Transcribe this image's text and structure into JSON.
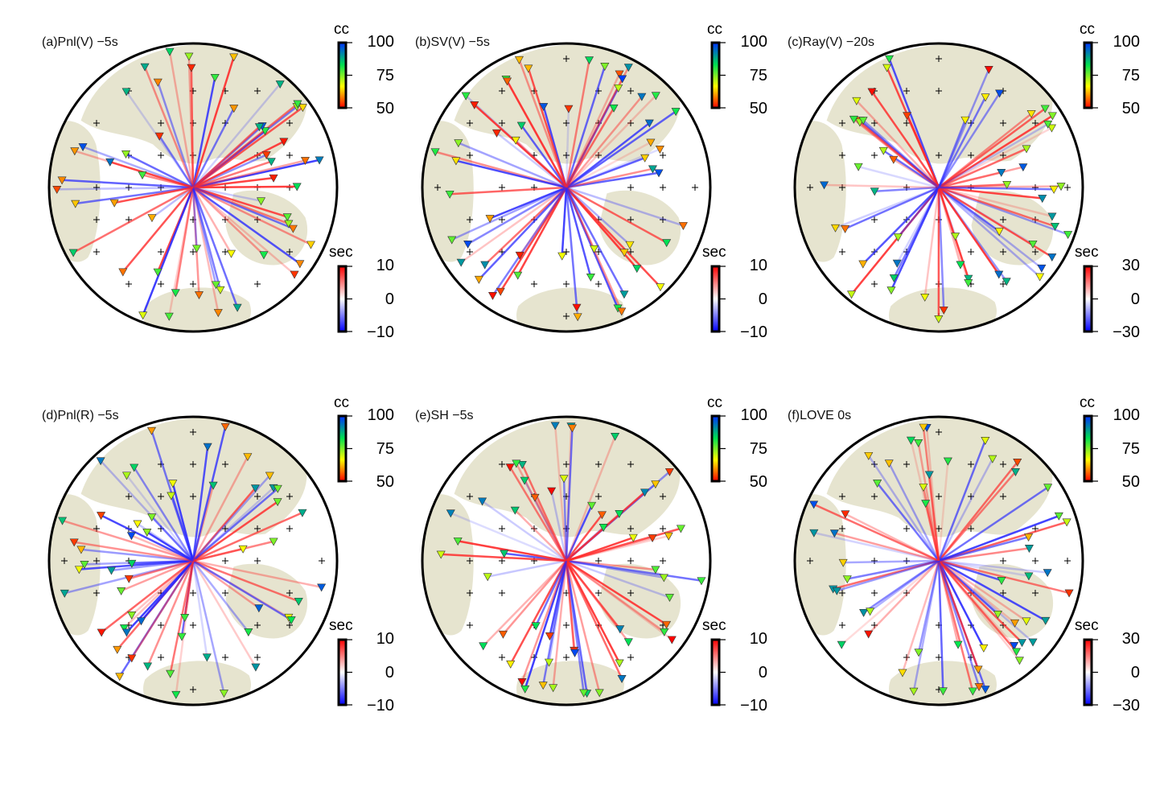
{
  "panels": [
    {
      "label": "(a)Pnl(V) −5s",
      "cc": {
        "title": "cc",
        "ticks": [
          "100",
          "75",
          "50"
        ]
      },
      "sec": {
        "title": "sec",
        "ticks": [
          "10",
          "0",
          "−10"
        ]
      }
    },
    {
      "label": "(b)SV(V) −5s",
      "cc": {
        "title": "cc",
        "ticks": [
          "100",
          "75",
          "50"
        ]
      },
      "sec": {
        "title": "sec",
        "ticks": [
          "10",
          "0",
          "−10"
        ]
      }
    },
    {
      "label": "(c)Ray(V) −20s",
      "cc": {
        "title": "cc",
        "ticks": [
          "100",
          "75",
          "50"
        ]
      },
      "sec": {
        "title": "sec",
        "ticks": [
          "30",
          "0",
          "−30"
        ]
      }
    },
    {
      "label": "(d)Pnl(R) −5s",
      "cc": {
        "title": "cc",
        "ticks": [
          "100",
          "75",
          "50"
        ]
      },
      "sec": {
        "title": "sec",
        "ticks": [
          "10",
          "0",
          "−10"
        ]
      }
    },
    {
      "label": "(e)SH −5s",
      "cc": {
        "title": "cc",
        "ticks": [
          "100",
          "75",
          "50"
        ]
      },
      "sec": {
        "title": "sec",
        "ticks": [
          "10",
          "0",
          "−10"
        ]
      }
    },
    {
      "label": "(f)LOVE 0s",
      "cc": {
        "title": "cc",
        "ticks": [
          "100",
          "75",
          "50"
        ]
      },
      "sec": {
        "title": "sec",
        "ticks": [
          "30",
          "0",
          "−30"
        ]
      }
    }
  ],
  "colors": {
    "land": "#e6e4cf",
    "positive_shift": "#ff0000",
    "negative_shift": "#0000ff",
    "cc_scale": [
      "#ff0000",
      "#ffff00",
      "#00ff00",
      "#0000ff"
    ]
  }
}
